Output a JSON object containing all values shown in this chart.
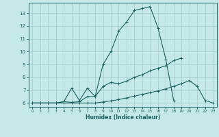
{
  "xlabel": "Humidex (Indice chaleur)",
  "bg_color": "#c5e8e8",
  "grid_color": "#a8d0d0",
  "line_color": "#1a6060",
  "spine_color": "#1a6060",
  "xlim": [
    -0.5,
    23.5
  ],
  "ylim": [
    5.7,
    13.8
  ],
  "yticks": [
    6,
    7,
    8,
    9,
    10,
    11,
    12,
    13
  ],
  "xticks": [
    0,
    1,
    2,
    3,
    4,
    5,
    6,
    7,
    8,
    9,
    10,
    11,
    12,
    13,
    14,
    15,
    16,
    17,
    18,
    19,
    20,
    21,
    22,
    23
  ],
  "series": [
    {
      "x": [
        0,
        1,
        2,
        3,
        4,
        5,
        6,
        7,
        8,
        9,
        10,
        11,
        12,
        13,
        14,
        15,
        16,
        17,
        18
      ],
      "y": [
        6.0,
        6.0,
        6.0,
        6.0,
        6.1,
        6.05,
        6.1,
        6.5,
        6.5,
        9.0,
        10.0,
        11.6,
        12.3,
        13.2,
        13.35,
        13.5,
        11.85,
        9.4,
        6.2
      ]
    },
    {
      "x": [
        0,
        1,
        2,
        3,
        4,
        5,
        6,
        7,
        8,
        9,
        10,
        11,
        12,
        13,
        14,
        15,
        16,
        17,
        18,
        19
      ],
      "y": [
        6.0,
        6.0,
        6.0,
        6.0,
        6.1,
        7.15,
        6.2,
        7.15,
        6.5,
        7.3,
        7.6,
        7.5,
        7.7,
        8.0,
        8.2,
        8.5,
        8.7,
        8.9,
        9.3,
        9.5
      ]
    },
    {
      "x": [
        0,
        1,
        2,
        3,
        4,
        5,
        6,
        7,
        8,
        9,
        10,
        11,
        12,
        13,
        14,
        15,
        16,
        17,
        18,
        19,
        20,
        21,
        22,
        23
      ],
      "y": [
        6.0,
        6.0,
        6.0,
        6.0,
        6.0,
        6.0,
        6.0,
        6.0,
        6.0,
        6.08,
        6.17,
        6.27,
        6.4,
        6.53,
        6.67,
        6.8,
        6.95,
        7.1,
        7.3,
        7.5,
        7.75,
        7.3,
        6.2,
        6.0
      ]
    }
  ]
}
